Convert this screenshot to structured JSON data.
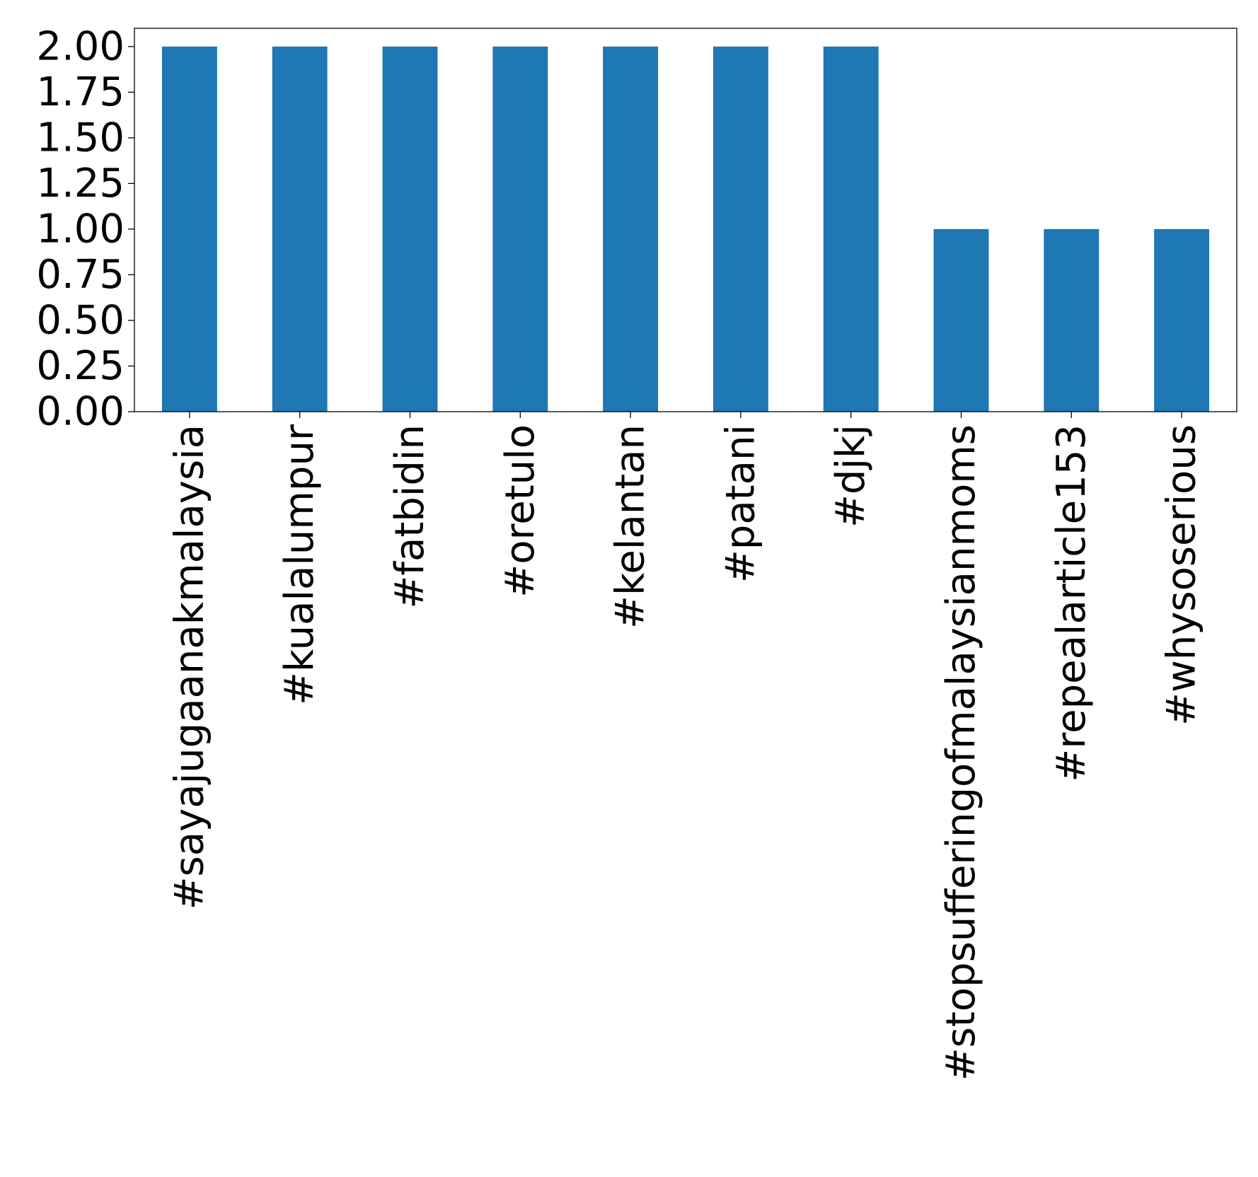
{
  "chart_data": {
    "type": "bar",
    "categories": [
      "#sayajugaanakmalaysia",
      "#kualalumpur",
      "#fatbidin",
      "#oretulo",
      "#kelantan",
      "#patani",
      "#djkj",
      "#stopsufferingofmalaysianmoms",
      "#repealarticle153",
      "#whysoserious"
    ],
    "values": [
      2,
      2,
      2,
      2,
      2,
      2,
      2,
      1,
      1,
      1
    ],
    "ylim": [
      0,
      2.1
    ],
    "yticks": [
      "0.00",
      "0.25",
      "0.50",
      "0.75",
      "1.00",
      "1.25",
      "1.50",
      "1.75",
      "2.00"
    ],
    "title": "",
    "xlabel": "",
    "ylabel": "",
    "grid": false,
    "bar_color": "#1f77b4"
  }
}
